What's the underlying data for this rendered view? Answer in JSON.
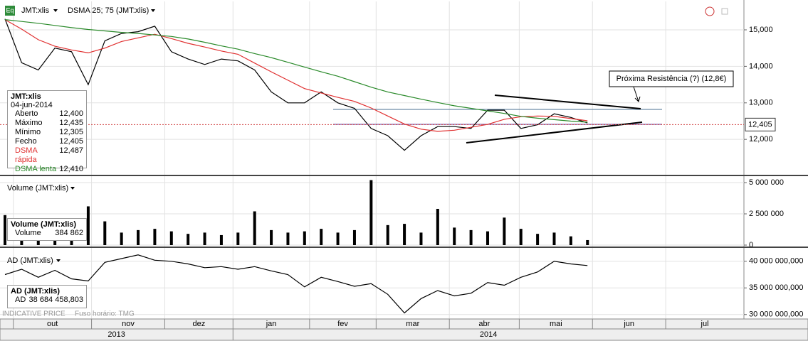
{
  "toolbar": {
    "icon": "Eq",
    "symbol": "JMT:xlis",
    "indicator": "DSMA 25; 75 (JMT:xlis)"
  },
  "footer": {
    "source": "INDICATIVE PRICE",
    "timezone": "Fuso horário: TMG"
  },
  "chart_data": [
    {
      "type": "line",
      "x": [
        -0.5,
        0.5,
        1.5,
        2.5,
        3.5,
        4.5,
        5.5,
        6.5,
        7.5,
        8.5,
        9.5,
        10.5,
        11.5,
        12.5,
        13.5,
        14.5,
        15.5,
        16.5,
        17.5,
        18.5,
        19.5,
        20.5,
        21.5,
        22.5,
        23.5,
        24.5,
        25.5,
        26.5,
        27.5,
        28.5,
        29.5,
        30.5,
        31.5,
        32.5,
        33.5,
        34.5
      ],
      "series": [
        {
          "name": "Fecho",
          "color": "#000000",
          "values": [
            15300,
            14100,
            13900,
            14500,
            14400,
            13500,
            14700,
            14900,
            14950,
            15100,
            14400,
            14200,
            14050,
            14200,
            14150,
            13900,
            13300,
            13000,
            13000,
            13300,
            13000,
            12850,
            12300,
            12100,
            11700,
            12100,
            12350,
            12350,
            12300,
            12800,
            12800,
            12300,
            12400,
            12700,
            12600,
            12450
          ]
        },
        {
          "name": "DSMA rápida",
          "color": "#e03030",
          "values": [
            15280,
            15020,
            14730,
            14550,
            14450,
            14370,
            14500,
            14680,
            14780,
            14880,
            14760,
            14630,
            14530,
            14420,
            14330,
            14090,
            13850,
            13620,
            13390,
            13270,
            13150,
            13040,
            12860,
            12640,
            12420,
            12280,
            12220,
            12250,
            12330,
            12410,
            12550,
            12620,
            12640,
            12630,
            12570,
            12510
          ]
        },
        {
          "name": "DSMA lenta",
          "color": "#2a8a2a",
          "values": [
            15280,
            15230,
            15180,
            15120,
            15060,
            15010,
            14970,
            14930,
            14900,
            14860,
            14820,
            14750,
            14660,
            14560,
            14470,
            14350,
            14240,
            14110,
            13980,
            13850,
            13730,
            13580,
            13430,
            13300,
            13200,
            13100,
            13010,
            12920,
            12850,
            12780,
            12710,
            12630,
            12580,
            12540,
            12500,
            12470
          ]
        }
      ],
      "xlim": [
        -0.8,
        43.9
      ],
      "ylim": [
        11050,
        15720
      ],
      "yticks": [
        {
          "value": 12000,
          "label": "12,000"
        },
        {
          "value": 13000,
          "label": "13,000"
        },
        {
          "value": 14000,
          "label": "14,000"
        },
        {
          "value": 15000,
          "label": "15,000"
        }
      ],
      "grid": true,
      "last_price": {
        "value": 12405,
        "label": "12,405"
      },
      "annotation": "Próxima Resistência (?) (12,8€)",
      "info_box": {
        "title": "JMT:xlis",
        "date": "04-jun-2014",
        "rows": [
          [
            "Aberto",
            "12,400"
          ],
          [
            "Máximo",
            "12,435"
          ],
          [
            "Mínimo",
            "12,305"
          ],
          [
            "Fecho",
            "12,405"
          ],
          [
            "DSMA rápida",
            "12,487"
          ],
          [
            "DSMA lenta",
            "12,410"
          ]
        ]
      }
    },
    {
      "type": "bar",
      "title": "Volume (JMT:xlis)",
      "x": [
        -0.5,
        0.5,
        1.5,
        2.5,
        3.5,
        4.5,
        5.5,
        6.5,
        7.5,
        8.5,
        9.5,
        10.5,
        11.5,
        12.5,
        13.5,
        14.5,
        15.5,
        16.5,
        17.5,
        18.5,
        19.5,
        20.5,
        21.5,
        22.5,
        23.5,
        24.5,
        25.5,
        26.5,
        27.5,
        28.5,
        29.5,
        30.5,
        31.5,
        32.5,
        33.5,
        34.5
      ],
      "values": [
        2400000,
        900000,
        700000,
        900000,
        1200000,
        3100000,
        1900000,
        1000000,
        1200000,
        1300000,
        1100000,
        900000,
        1000000,
        800000,
        1000000,
        2700000,
        1200000,
        1000000,
        1100000,
        1300000,
        1000000,
        1200000,
        5200000,
        1600000,
        1700000,
        1000000,
        2900000,
        1400000,
        1200000,
        1100000,
        2200000,
        1300000,
        900000,
        1000000,
        700000,
        400000
      ],
      "color": "#000000",
      "xlim": [
        -0.8,
        43.9
      ],
      "ylim": [
        0,
        5400000
      ],
      "yticks": [
        0,
        {
          "value": 2500000,
          "label": "2 500 000"
        },
        {
          "value": 5000000,
          "label": "5 000 000"
        }
      ],
      "grid": true,
      "info_box": {
        "title": "Volume (JMT:xlis)",
        "rows": [
          [
            "Volume",
            "384 862"
          ]
        ]
      }
    },
    {
      "type": "line",
      "title": "AD (JMT:xlis)",
      "x": [
        -0.5,
        0.5,
        1.5,
        2.5,
        3.5,
        4.5,
        5.5,
        6.5,
        7.5,
        8.5,
        9.5,
        10.5,
        11.5,
        12.5,
        13.5,
        14.5,
        15.5,
        16.5,
        17.5,
        18.5,
        19.5,
        20.5,
        21.5,
        22.5,
        23.5,
        24.5,
        25.5,
        26.5,
        27.5,
        28.5,
        29.5,
        30.5,
        31.5,
        32.5,
        33.5,
        34.5
      ],
      "series": [
        {
          "name": "AD",
          "color": "#000000",
          "values": [
            37500000000,
            38500000000,
            37000000000,
            38300000000,
            36700000000,
            36300000000,
            39800000000,
            40500000000,
            41200000000,
            40200000000,
            40000000000,
            39500000000,
            38800000000,
            39000000000,
            38500000000,
            39000000000,
            38200000000,
            37500000000,
            35200000000,
            37000000000,
            36200000000,
            35300000000,
            35800000000,
            33800000000,
            30300000000,
            33000000000,
            34500000000,
            33500000000,
            34000000000,
            36000000000,
            35500000000,
            37000000000,
            38000000000,
            40000000000,
            39500000000,
            39200000000
          ]
        }
      ],
      "xlim": [
        -0.8,
        43.9
      ],
      "ylim": [
        29300000000,
        42100000000
      ],
      "yticks": [
        {
          "value": 30000000000,
          "label": "30 000 000,000"
        },
        {
          "value": 35000000000,
          "label": "35 000 000,000"
        },
        {
          "value": 40000000000,
          "label": "40 000 000,000"
        }
      ],
      "grid": true,
      "xticks": [
        {
          "value": 0,
          "label": "out"
        },
        {
          "value": 4.7,
          "label": "nov"
        },
        {
          "value": 9.1,
          "label": "dez"
        },
        {
          "value": 13.2,
          "label": "jan"
        },
        {
          "value": 17.8,
          "label": "fev"
        },
        {
          "value": 21.8,
          "label": "mar"
        },
        {
          "value": 26.2,
          "label": "abr"
        },
        {
          "value": 30.4,
          "label": "mai"
        },
        {
          "value": 34.8,
          "label": "jun"
        },
        {
          "value": 39.2,
          "label": "jul"
        }
      ],
      "years": [
        {
          "value": -0.8,
          "label": "2013"
        },
        {
          "value": 13.2,
          "label": "2014"
        }
      ],
      "info_box": {
        "title": "AD (JMT:xlis)",
        "rows": [
          [
            "AD",
            "38 684 458,803"
          ]
        ]
      }
    }
  ]
}
